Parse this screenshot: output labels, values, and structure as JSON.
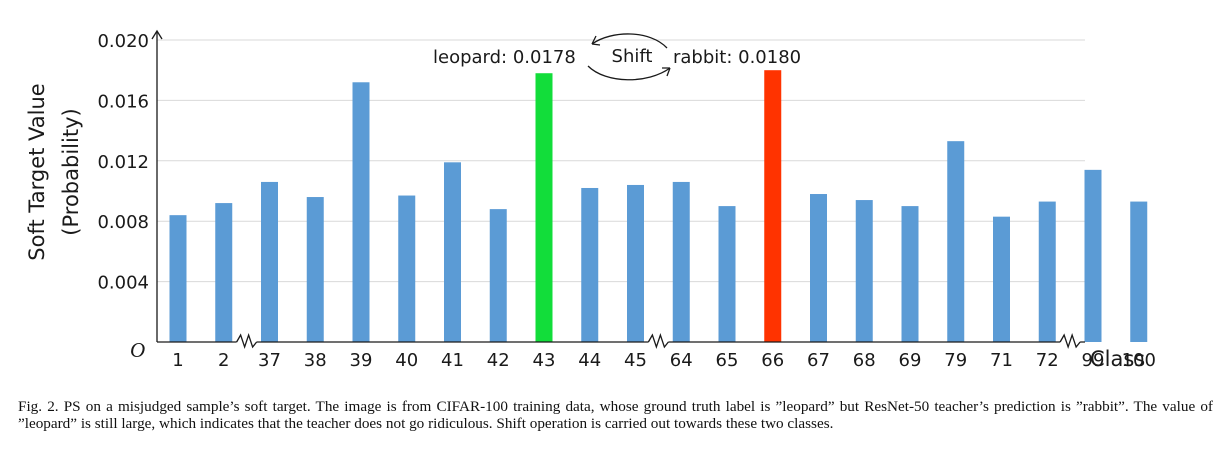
{
  "chart_data": {
    "type": "bar",
    "ylabel": "Soft Target Value",
    "ylabel2": "(Probability)",
    "xlabel": "Class",
    "origin_label": "O",
    "ylim": [
      0,
      0.02
    ],
    "yticks": [
      "0.004",
      "0.008",
      "0.012",
      "0.016",
      "0.020"
    ],
    "grid": true,
    "categories": [
      "1",
      "2",
      "37",
      "38",
      "39",
      "40",
      "41",
      "42",
      "43",
      "44",
      "45",
      "64",
      "65",
      "66",
      "67",
      "68",
      "69",
      "79",
      "71",
      "72",
      "99",
      "100"
    ],
    "values": [
      0.0084,
      0.0092,
      0.0106,
      0.0096,
      0.0172,
      0.0097,
      0.0119,
      0.0088,
      0.0178,
      0.0102,
      0.0104,
      0.0106,
      0.009,
      0.018,
      0.0098,
      0.0094,
      0.009,
      0.0133,
      0.0083,
      0.0093,
      0.0114,
      0.0093
    ],
    "colors": {
      "default": "#5b9bd5",
      "leopard": "#12dd3a",
      "rabbit": "#ff3300"
    },
    "highlight": {
      "leopard_index": 8,
      "rabbit_index": 13
    },
    "axis_breaks_after": [
      "2",
      "45",
      "72"
    ],
    "annotations": {
      "left": "leopard: 0.0178",
      "center": "Shift",
      "right": "rabbit: 0.0180"
    }
  },
  "caption": "Fig. 2.  PS on a misjudged sample’s soft target. The image is from CIFAR-100 training data, whose ground truth label is ”leopard” but ResNet-50 teacher’s prediction is ”rabbit”. The value of ”leopard” is still large, which indicates that the teacher does not go ridiculous. Shift operation is carried out towards these two classes."
}
